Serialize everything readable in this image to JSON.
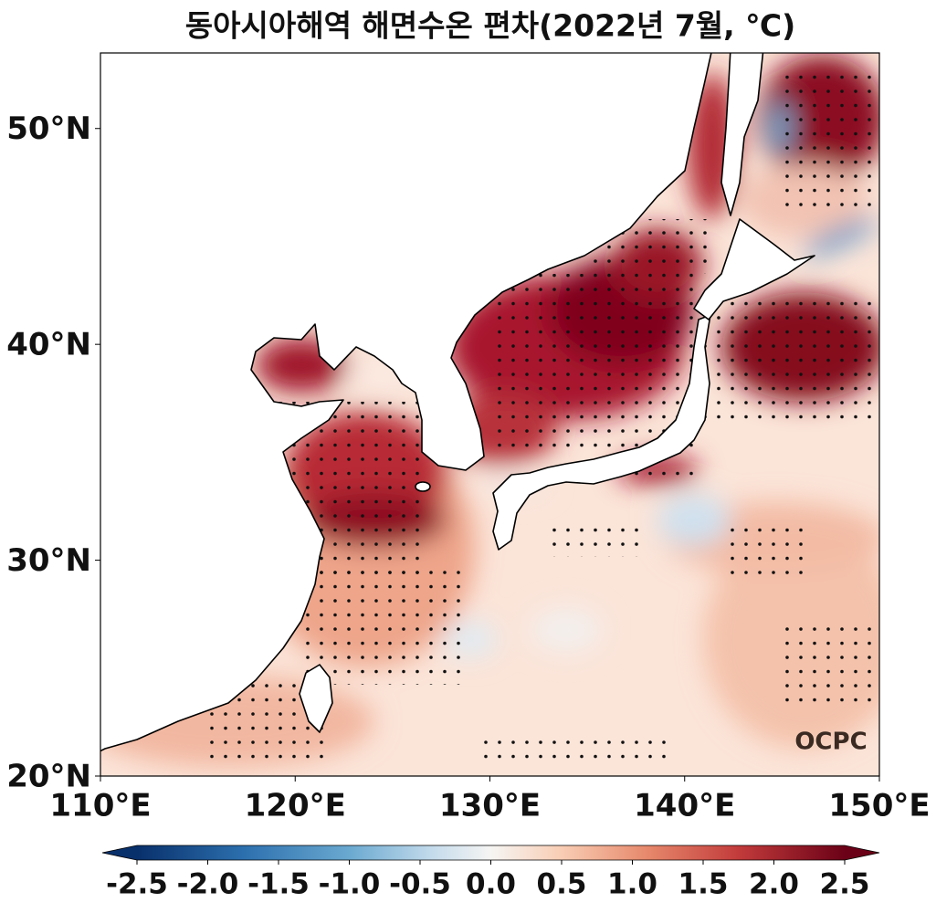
{
  "title": "동아시아해역 해면수온 편차(2022년 7월, ℃)",
  "map": {
    "xlim": [
      110,
      150
    ],
    "ylim": [
      20,
      53.5
    ],
    "xticks": [
      {
        "value": 110,
        "label": "110°E"
      },
      {
        "value": 120,
        "label": "120°E"
      },
      {
        "value": 130,
        "label": "130°E"
      },
      {
        "value": 140,
        "label": "140°E"
      },
      {
        "value": 150,
        "label": "150°E"
      }
    ],
    "yticks": [
      {
        "value": 20,
        "label": "20°N"
      },
      {
        "value": 30,
        "label": "30°N"
      },
      {
        "value": 40,
        "label": "40°N"
      },
      {
        "value": 50,
        "label": "50°N"
      }
    ]
  },
  "colorbar": {
    "lim": [
      -2.5,
      2.5
    ],
    "ticks": [
      -2.5,
      {
        "value": -2,
        "label": "-2.0"
      },
      -1.5,
      {
        "value": -1,
        "label": "-1.0"
      },
      -0.5,
      {
        "value": 0,
        "label": "0.0"
      },
      0.5,
      {
        "value": 1,
        "label": "1.0"
      },
      1.5,
      {
        "value": 2,
        "label": "2.0"
      },
      2.5
    ]
  },
  "watermark": "OCPC"
}
